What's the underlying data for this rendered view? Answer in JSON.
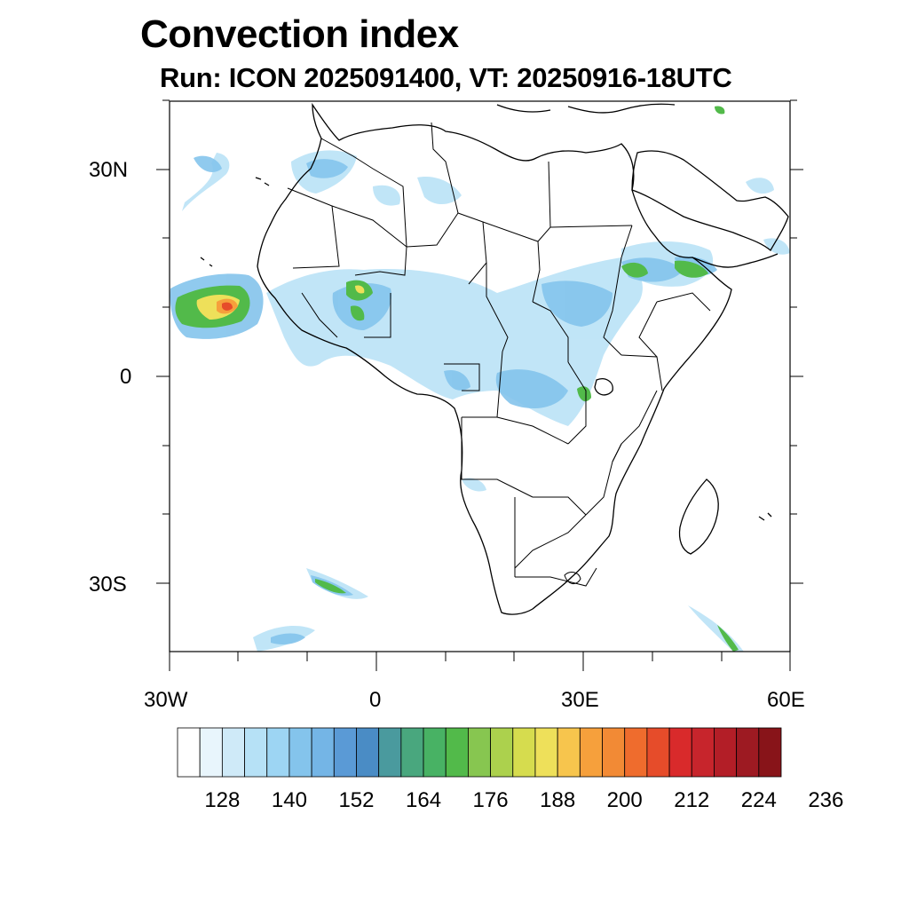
{
  "header": {
    "title": "Convection index",
    "subtitle": "Run: ICON 2025091400,  VT: 20250916-18UTC"
  },
  "map": {
    "region": "Africa",
    "extent": {
      "lon": [
        -30,
        60
      ],
      "lat": [
        -40,
        40
      ]
    }
  },
  "axes": {
    "lat_labels": [
      "30N",
      "0",
      "30S"
    ],
    "lon_labels": [
      "30W",
      "0",
      "30E",
      "60E"
    ]
  },
  "colorbar": {
    "colors": [
      "#ffffff",
      "#e8f5fc",
      "#cfeaf8",
      "#b6e1f6",
      "#9dd5f3",
      "#84c4ec",
      "#74b5e6",
      "#5a9ad6",
      "#4a8cc5",
      "#4a9a9e",
      "#49a77e",
      "#48b264",
      "#52ba4a",
      "#87c650",
      "#acd14d",
      "#d6dc4e",
      "#eee05a",
      "#f7c54d",
      "#f6a03c",
      "#f28a35",
      "#ef6c2d",
      "#e64c2a",
      "#d92a2b",
      "#c7252c",
      "#b31e27",
      "#9d1a22",
      "#881419"
    ],
    "tick_labels": [
      "128",
      "140",
      "152",
      "164",
      "176",
      "188",
      "200",
      "212",
      "224",
      "236"
    ]
  }
}
